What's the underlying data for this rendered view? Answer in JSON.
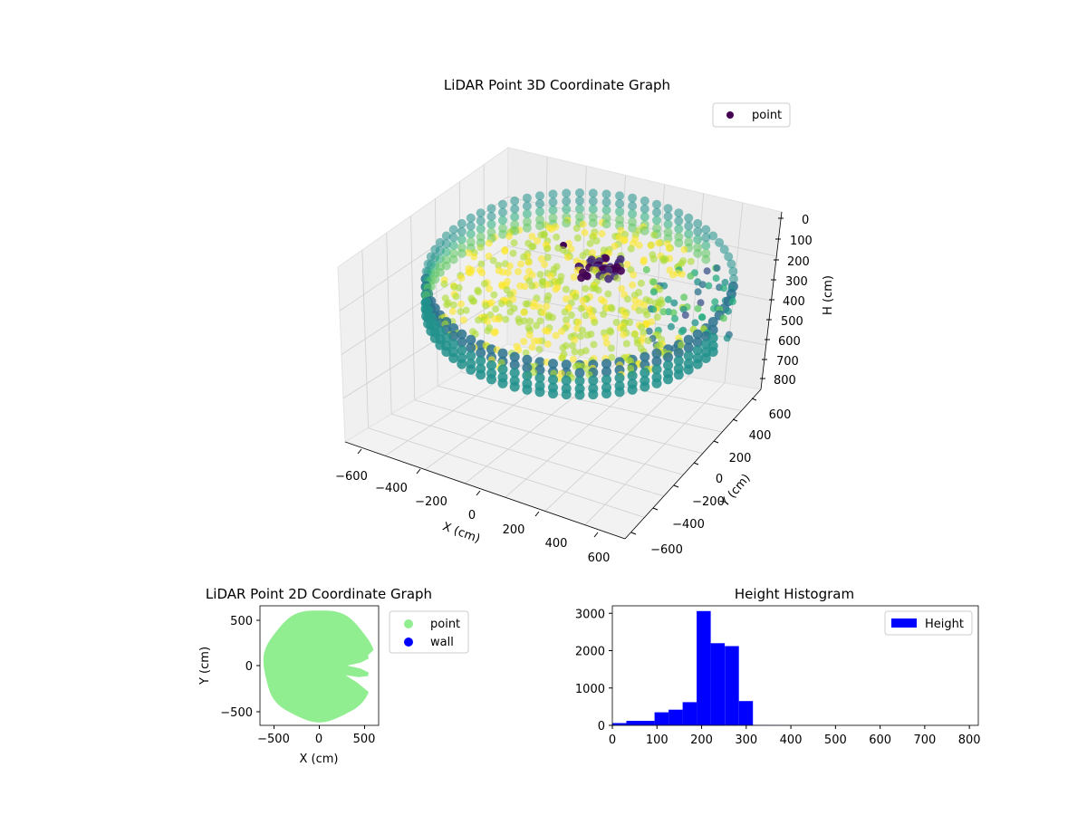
{
  "colors": {
    "point_dark": "#440154",
    "point_2d": "#90ee90",
    "wall": "#0000ff",
    "hist_bar": "#0000ff",
    "viridis": [
      "#440154",
      "#472d7b",
      "#3b528b",
      "#2c728e",
      "#21918c",
      "#28ae80",
      "#5ec962",
      "#addc30",
      "#fde725"
    ]
  },
  "chart_data": [
    {
      "type": "scatter",
      "projection": "3d",
      "title": "LiDAR Point 3D Coordinate Graph",
      "xlabel": "X (cm)",
      "ylabel": "Y (cm)",
      "zlabel": "H (cm)",
      "xlim": [
        -650,
        650
      ],
      "ylim": [
        -650,
        650
      ],
      "zlim": [
        800,
        0
      ],
      "xticks": [
        "−600",
        "−400",
        "−200",
        "0",
        "200",
        "400",
        "600"
      ],
      "yticks": [
        "−600",
        "−400",
        "−200",
        "0",
        "200",
        "400",
        "600"
      ],
      "zticks": [
        "0",
        "100",
        "200",
        "300",
        "400",
        "500",
        "600",
        "700",
        "800"
      ],
      "legend": {
        "entries": [
          "point"
        ],
        "placement": "top-right"
      },
      "grid": true,
      "series": [
        {
          "name": "point",
          "description_colormap": "viridis",
          "wall_radius": 600,
          "wall_height_range": [
            150,
            300
          ],
          "wall_gap_angle_range": [
            -0.55,
            0.45
          ],
          "floor_height": 260
        }
      ]
    },
    {
      "type": "scatter",
      "title": "LiDAR Point 2D Coordinate Graph",
      "xlabel": "X (cm)",
      "ylabel": "Y (cm)",
      "xlim": [
        -640,
        640
      ],
      "ylim": [
        -640,
        640
      ],
      "xticks": [
        "−500",
        "0",
        "500"
      ],
      "yticks": [
        "−500",
        "0",
        "500"
      ],
      "legend": {
        "entries": [
          "point",
          "wall"
        ],
        "placement": "outside-right"
      },
      "series": [
        {
          "name": "point",
          "disc_radius": 600,
          "gap_angle_range": [
            -0.45,
            0.25
          ]
        },
        {
          "name": "wall",
          "values": []
        }
      ]
    },
    {
      "type": "bar",
      "subtype": "histogram",
      "title": "Height Histogram",
      "xlabel": "",
      "ylabel": "",
      "xlim": [
        0,
        820
      ],
      "ylim": [
        0,
        3200
      ],
      "xticks": [
        "0",
        "100",
        "200",
        "300",
        "400",
        "500",
        "600",
        "700",
        "800"
      ],
      "yticks": [
        "0",
        "1000",
        "2000",
        "3000"
      ],
      "legend": {
        "entries": [
          "Height"
        ],
        "placement": "top-right"
      },
      "bin_width": 31.5,
      "bins": [
        0,
        31.5,
        63,
        94.5,
        126,
        157.5,
        189,
        220.5,
        252,
        283.5,
        315,
        346.5,
        378,
        409.5,
        441,
        472.5,
        504,
        535.5,
        567,
        598.5,
        630,
        661.5,
        693,
        724.5,
        756,
        787.5
      ],
      "series": [
        {
          "name": "Height",
          "values": [
            60,
            120,
            120,
            350,
            420,
            620,
            3060,
            2200,
            2120,
            650,
            8,
            4,
            3,
            3,
            2,
            2,
            2,
            2,
            2,
            2,
            2,
            2,
            2,
            2,
            2,
            2
          ]
        }
      ]
    }
  ]
}
